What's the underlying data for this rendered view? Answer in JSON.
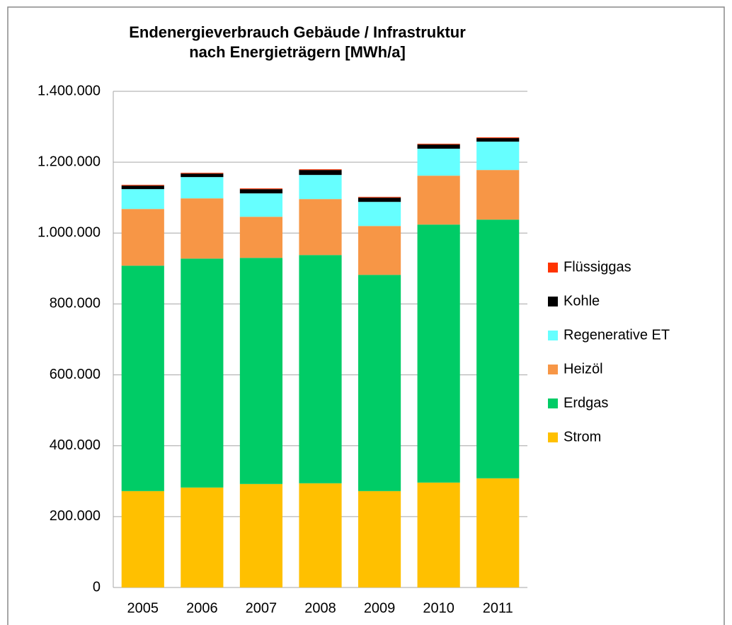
{
  "chart_data": {
    "type": "stacked_bar",
    "title": "Endenergieverbrauch Gebäude / Infrastruktur nach Energieträgern [MWh/a]",
    "categories": [
      "2005",
      "2006",
      "2007",
      "2008",
      "2009",
      "2010",
      "2011"
    ],
    "series": [
      {
        "name": "Strom",
        "color": "#ffc000",
        "values": [
          272000,
          282000,
          292000,
          294000,
          272000,
          296000,
          308000
        ]
      },
      {
        "name": "Erdgas",
        "color": "#00cc66",
        "values": [
          636000,
          646000,
          638000,
          644000,
          610000,
          728000,
          730000
        ]
      },
      {
        "name": "Heizöl",
        "color": "#f79646",
        "values": [
          160000,
          170000,
          116000,
          158000,
          138000,
          138000,
          140000
        ]
      },
      {
        "name": "Regenerative ET",
        "color": "#66ffff",
        "values": [
          56000,
          60000,
          66000,
          68000,
          68000,
          76000,
          80000
        ]
      },
      {
        "name": "Kohle",
        "color": "#000000",
        "values": [
          10000,
          10000,
          12000,
          14000,
          12000,
          12000,
          10000
        ]
      },
      {
        "name": "Flüssiggas",
        "color": "#ff3300",
        "values": [
          2000,
          2000,
          2000,
          2000,
          2000,
          2000,
          2000
        ]
      }
    ],
    "ylim": [
      0,
      1400000
    ],
    "yticks": [
      0,
      {
        "value": 200000,
        "label": "200.000"
      },
      {
        "value": 400000,
        "label": "400.000"
      },
      {
        "value": 600000,
        "label": "600.000"
      },
      {
        "value": 800000,
        "label": "800.000"
      },
      {
        "value": 1000000,
        "label": "1.000.000"
      },
      {
        "value": 1200000,
        "label": "1.200.000"
      },
      {
        "value": 1400000,
        "label": "1.400.000"
      }
    ],
    "grid": true,
    "legend": "right"
  }
}
